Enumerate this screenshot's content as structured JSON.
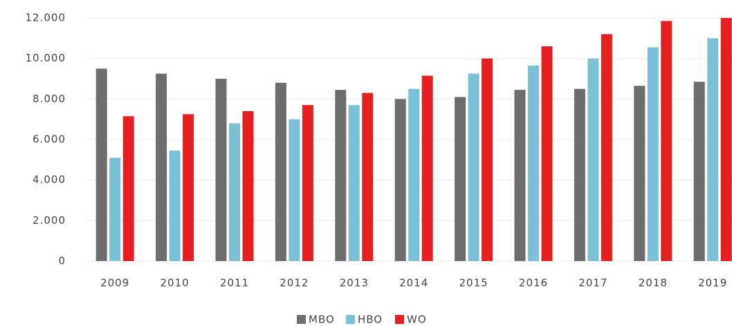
{
  "chart_data": {
    "type": "bar",
    "categories": [
      "2009",
      "2010",
      "2011",
      "2012",
      "2013",
      "2014",
      "2015",
      "2016",
      "2017",
      "2018",
      "2019"
    ],
    "series": [
      {
        "name": "MBO",
        "color": "#6d6d6d",
        "values": [
          9500,
          9250,
          9000,
          8800,
          8450,
          8000,
          8100,
          8450,
          8500,
          8650,
          8850
        ]
      },
      {
        "name": "HBO",
        "color": "#7cc0d8",
        "values": [
          5100,
          5450,
          6800,
          7000,
          7700,
          8500,
          9250,
          9650,
          10000,
          10550,
          11000
        ]
      },
      {
        "name": "WO",
        "color": "#e3201f",
        "values": [
          7150,
          7250,
          7400,
          7700,
          8300,
          9150,
          10000,
          10600,
          11200,
          11850,
          12000
        ]
      }
    ],
    "ylim": [
      0,
      12000
    ],
    "yticks": [
      0,
      {
        "value": 2000,
        "label": "2.000"
      },
      {
        "value": 4000,
        "label": "4.000"
      },
      {
        "value": 6000,
        "label": "6.000"
      },
      {
        "value": 8000,
        "label": "8.000"
      },
      {
        "value": 10000,
        "label": "10.000"
      },
      {
        "value": 12000,
        "label": "12.000"
      }
    ],
    "grid": true,
    "legend": "bottom"
  }
}
